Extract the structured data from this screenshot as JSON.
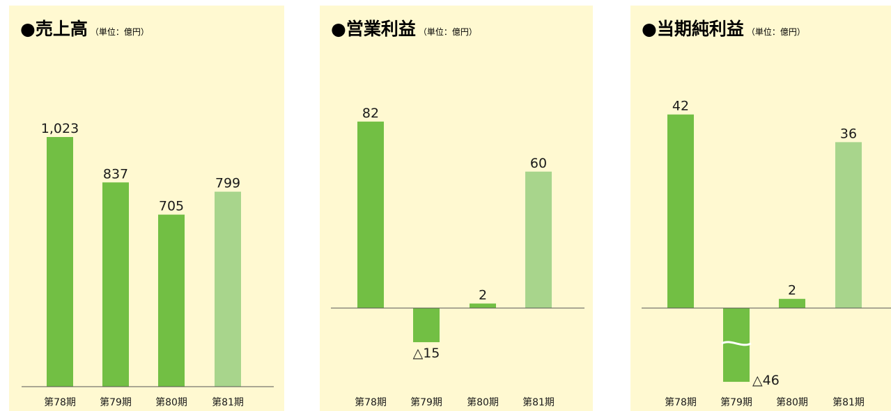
{
  "colors": {
    "background": "#fff9d1",
    "bar": "#72bf44",
    "bar_last": "#a8d58c",
    "axis": "#555555"
  },
  "chart_data": [
    {
      "type": "bar",
      "title": "●売上高",
      "unit": "（単位：億円）",
      "categories": [
        "第78期",
        "第79期",
        "第80期",
        "第81期"
      ],
      "values": [
        1023,
        837,
        705,
        799
      ],
      "value_labels": [
        "1,023",
        "837",
        "705",
        "799"
      ],
      "ylim": [
        0,
        1100
      ]
    },
    {
      "type": "bar",
      "title": "●営業利益",
      "unit": "（単位：億円）",
      "categories": [
        "第78期",
        "第79期",
        "第80期",
        "第81期"
      ],
      "values": [
        82,
        -15,
        2,
        60
      ],
      "value_labels": [
        "82",
        "△15",
        "2",
        "60"
      ],
      "ylim": [
        -15,
        85
      ]
    },
    {
      "type": "bar",
      "title": "●当期純利益",
      "unit": "（単位：億円）",
      "categories": [
        "第78期",
        "第79期",
        "第80期",
        "第81期"
      ],
      "values": [
        42,
        -46,
        2,
        36
      ],
      "value_labels": [
        "42",
        "△46",
        "2",
        "36"
      ],
      "ylim": [
        -16,
        43
      ],
      "axis_break": {
        "category": "第79期"
      }
    }
  ]
}
